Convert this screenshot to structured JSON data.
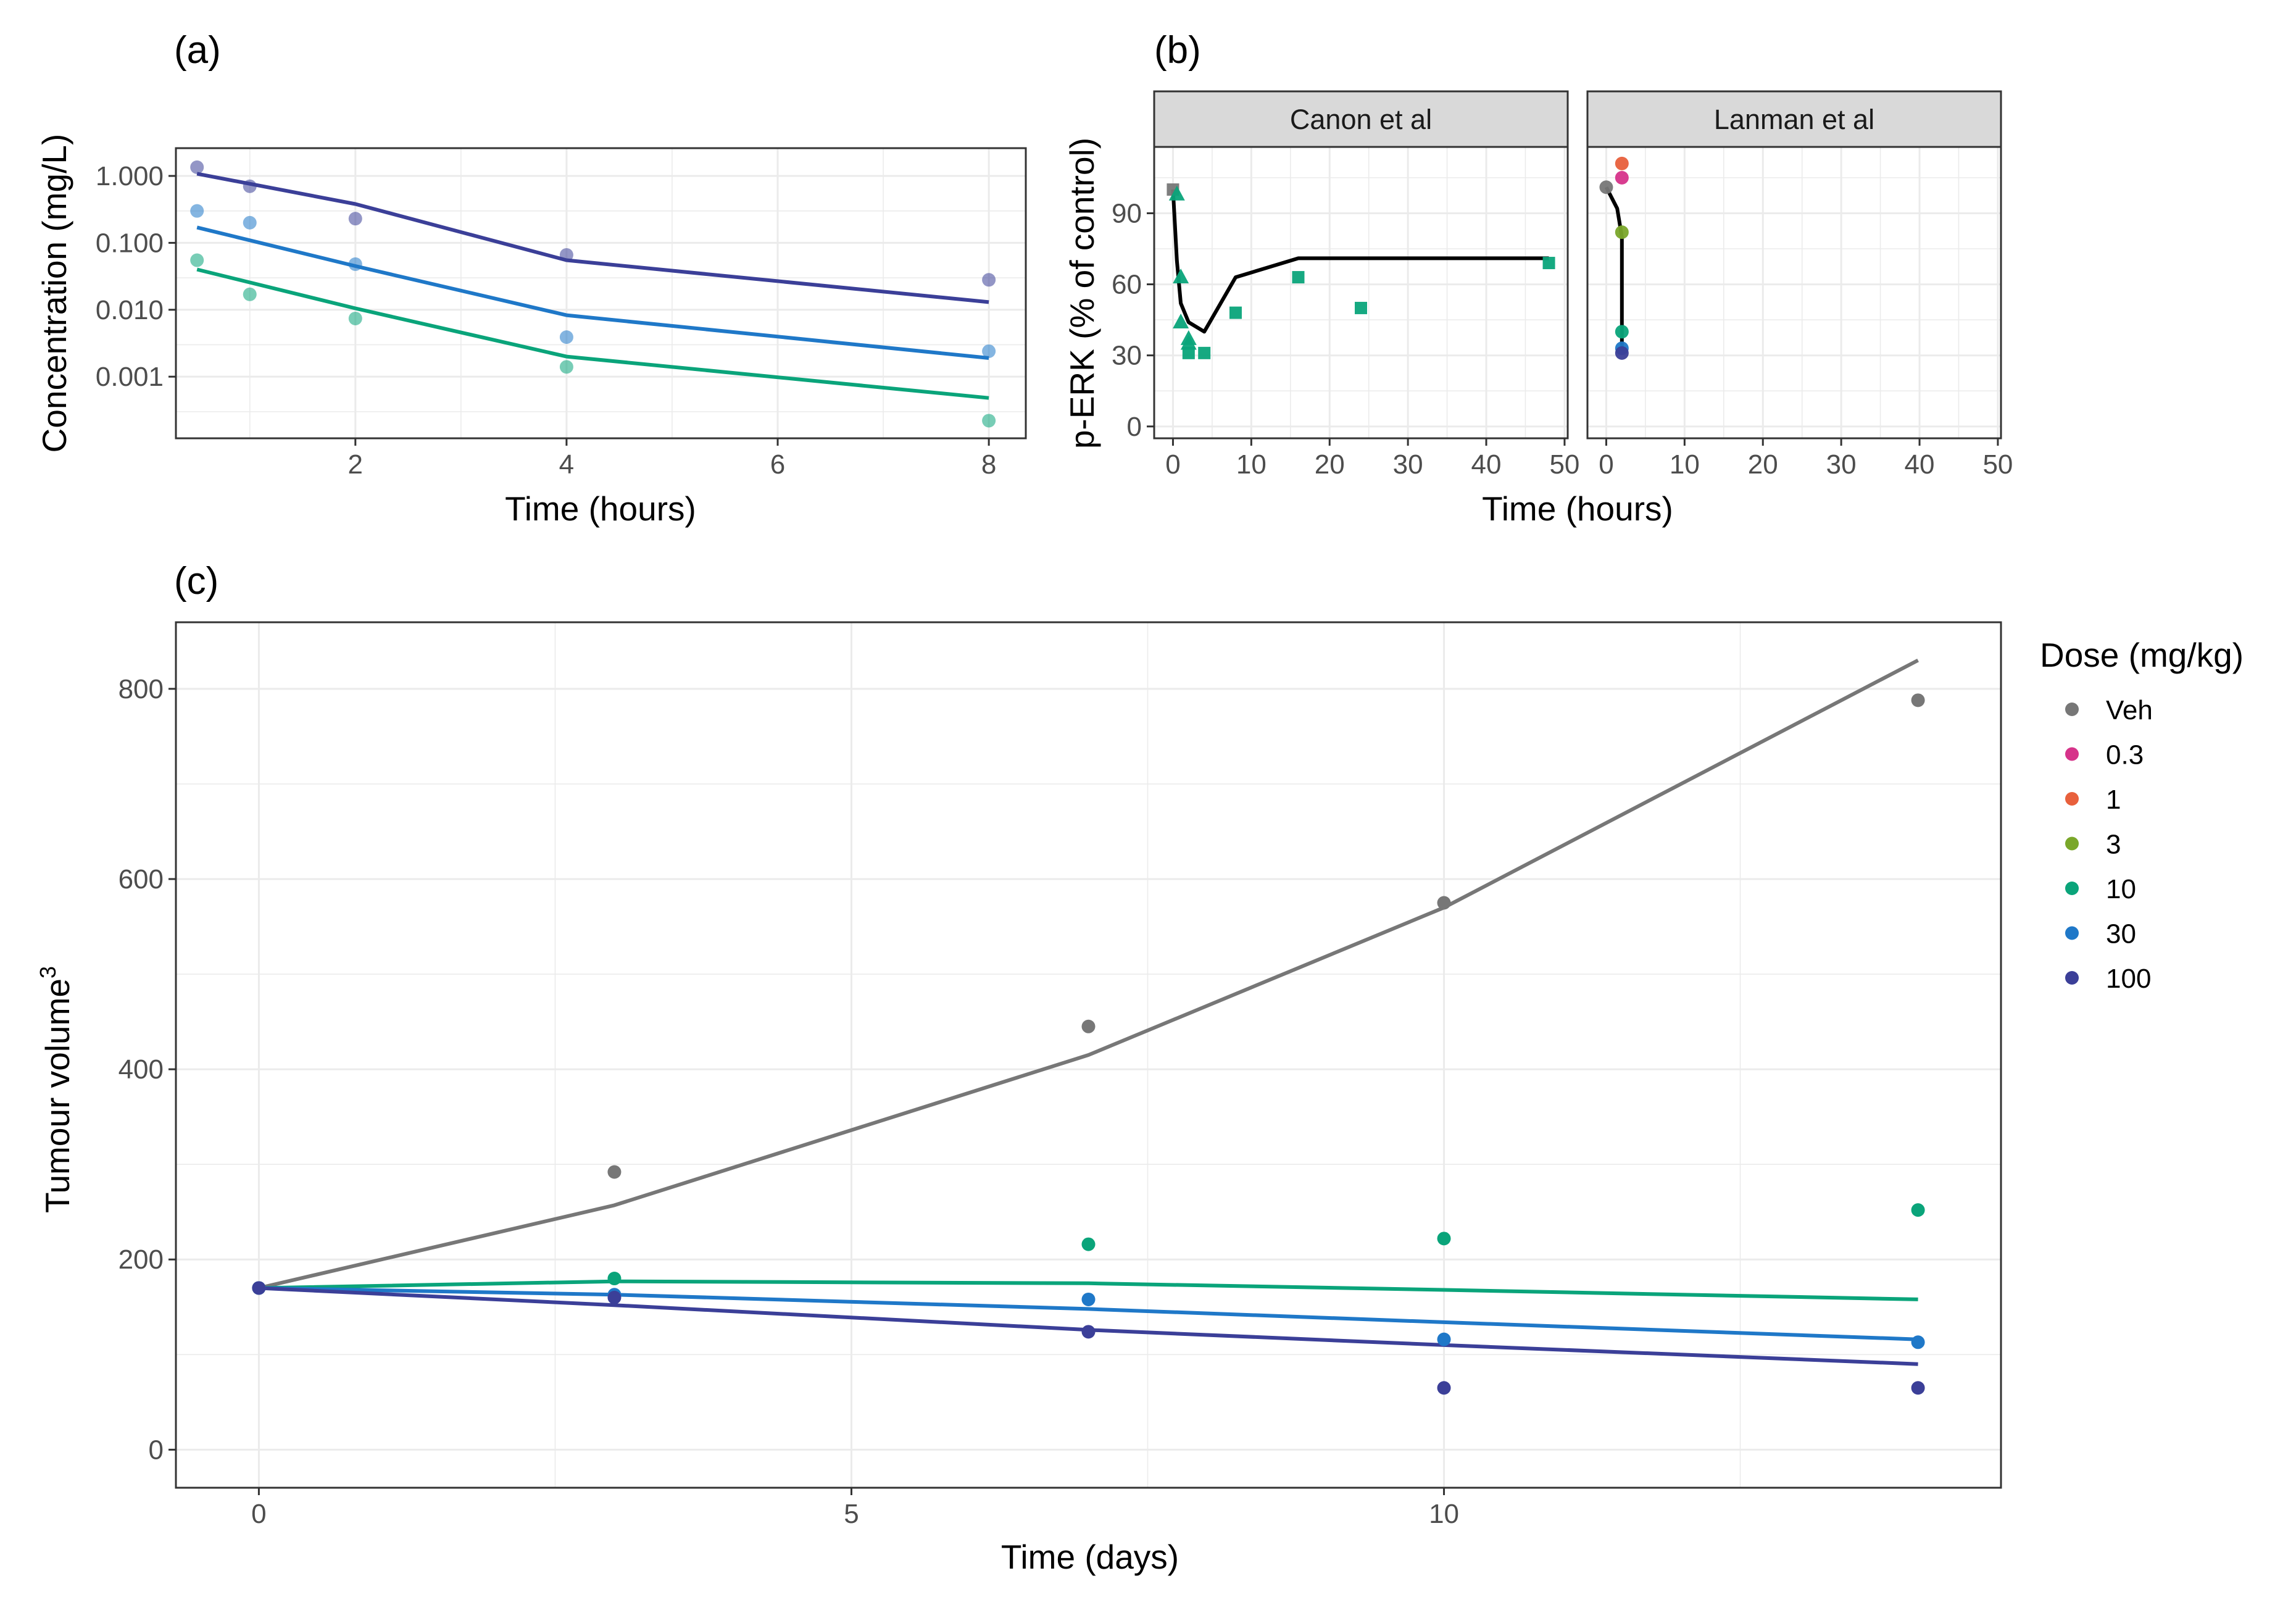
{
  "colors": {
    "Veh": "#777777",
    "0.3": "#d6338a",
    "1": "#e8603c",
    "3": "#7aa72a",
    "10": "#0aa47a",
    "30": "#1f78c8",
    "100": "#3b3f98",
    "model": "#000000"
  },
  "legend": {
    "title": "Dose (mg/kg)",
    "entries": [
      "Veh",
      "0.3",
      "1",
      "3",
      "10",
      "30",
      "100"
    ]
  },
  "chart_data": [
    {
      "panel": "(a)",
      "type": "scatter",
      "scale_y": "log10",
      "xlabel": "Time (hours)",
      "ylabel": "Concentration (mg/L)",
      "xlim": [
        0.3,
        8.35
      ],
      "ylim": [
        0.00012,
        2.6
      ],
      "x_ticks": [
        2,
        4,
        6,
        8
      ],
      "y_ticks": [
        0.001,
        0.01,
        0.1,
        1
      ],
      "y_tick_labels": [
        "0.001",
        "0.010",
        "0.100",
        "1.000"
      ],
      "grid": true,
      "series": [
        {
          "dose": "100",
          "points": [
            [
              0.5,
              1.35
            ],
            [
              1,
              0.7
            ],
            [
              2,
              0.23
            ],
            [
              4,
              0.066
            ],
            [
              8,
              0.028
            ]
          ],
          "fit": [
            [
              0.5,
              1.08
            ],
            [
              2,
              0.38
            ],
            [
              4,
              0.055
            ],
            [
              8,
              0.013
            ]
          ]
        },
        {
          "dose": "30",
          "points": [
            [
              0.5,
              0.3
            ],
            [
              1,
              0.2
            ],
            [
              2,
              0.048
            ],
            [
              4,
              0.0039
            ],
            [
              8,
              0.0024
            ]
          ],
          "fit": [
            [
              0.5,
              0.17
            ],
            [
              2,
              0.045
            ],
            [
              4,
              0.0083
            ],
            [
              8,
              0.0019
            ]
          ]
        },
        {
          "dose": "10",
          "points": [
            [
              0.5,
              0.055
            ],
            [
              1,
              0.017
            ],
            [
              2,
              0.0074
            ],
            [
              4,
              0.0014
            ],
            [
              8,
              0.00022
            ]
          ],
          "fit": [
            [
              0.5,
              0.04
            ],
            [
              2,
              0.0105
            ],
            [
              4,
              0.002
            ],
            [
              8,
              0.00048
            ]
          ]
        }
      ]
    },
    {
      "panel": "(b)",
      "type": "scatter",
      "xlabel": "Time (hours)",
      "ylabel": "p-ERK (% of control)",
      "xlim": [
        -2.4,
        50.4
      ],
      "ylim": [
        -5,
        118
      ],
      "x_ticks": [
        0,
        10,
        20,
        30,
        40,
        50
      ],
      "y_ticks": [
        0,
        30,
        60,
        90
      ],
      "grid": true,
      "facets": [
        {
          "strip": "Canon et al",
          "points": [
            {
              "x": 0,
              "y": 100,
              "dose": "Veh",
              "shape": "square"
            },
            {
              "x": 0.5,
              "y": 98,
              "dose": "10",
              "shape": "triangle"
            },
            {
              "x": 1,
              "y": 63,
              "dose": "10",
              "shape": "triangle"
            },
            {
              "x": 1,
              "y": 44,
              "dose": "10",
              "shape": "triangle"
            },
            {
              "x": 2,
              "y": 37,
              "dose": "10",
              "shape": "triangle"
            },
            {
              "x": 2,
              "y": 35,
              "dose": "10",
              "shape": "triangle"
            },
            {
              "x": 2,
              "y": 31,
              "dose": "10",
              "shape": "square"
            },
            {
              "x": 4,
              "y": 31,
              "dose": "10",
              "shape": "square"
            },
            {
              "x": 8,
              "y": 48,
              "dose": "10",
              "shape": "square"
            },
            {
              "x": 16,
              "y": 63,
              "dose": "10",
              "shape": "square"
            },
            {
              "x": 24,
              "y": 50,
              "dose": "10",
              "shape": "square"
            },
            {
              "x": 48,
              "y": 69,
              "dose": "10",
              "shape": "square"
            }
          ],
          "fit": [
            [
              0,
              100
            ],
            [
              0.5,
              70
            ],
            [
              1,
              52
            ],
            [
              2,
              44
            ],
            [
              4,
              40
            ],
            [
              8,
              63
            ],
            [
              16,
              71
            ],
            [
              48,
              71
            ]
          ]
        },
        {
          "strip": "Lanman et al",
          "points": [
            {
              "x": 0,
              "y": 101,
              "dose": "Veh",
              "shape": "circle"
            },
            {
              "x": 2,
              "y": 111,
              "dose": "1",
              "shape": "circle"
            },
            {
              "x": 2,
              "y": 105,
              "dose": "0.3",
              "shape": "circle"
            },
            {
              "x": 2,
              "y": 82,
              "dose": "3",
              "shape": "circle"
            },
            {
              "x": 2,
              "y": 40,
              "dose": "10",
              "shape": "circle"
            },
            {
              "x": 2,
              "y": 33,
              "dose": "30",
              "shape": "circle"
            },
            {
              "x": 2,
              "y": 31,
              "dose": "100",
              "shape": "circle"
            }
          ],
          "fit": [
            [
              0,
              101
            ],
            [
              1.4,
              92
            ],
            [
              2,
              80
            ],
            [
              2,
              32
            ]
          ]
        }
      ]
    },
    {
      "panel": "(c)",
      "type": "scatter",
      "xlabel": "Time (days)",
      "ylabel": "Tumour volume",
      "ylabel_superscript": "3",
      "xlim": [
        -0.7,
        14.7
      ],
      "ylim": [
        -40,
        870
      ],
      "x_ticks": [
        0,
        5,
        10
      ],
      "y_ticks": [
        0,
        200,
        400,
        600,
        800
      ],
      "grid": true,
      "series": [
        {
          "dose": "Veh",
          "x": [
            0,
            3,
            7,
            10,
            14
          ],
          "points": [
            170,
            292,
            445,
            575,
            788
          ],
          "fit": [
            170,
            257,
            415,
            570,
            830
          ]
        },
        {
          "dose": "10",
          "x": [
            0,
            3,
            7,
            10,
            14
          ],
          "points": [
            170,
            180,
            216,
            222,
            252
          ],
          "fit": [
            170,
            177,
            175,
            168,
            158
          ]
        },
        {
          "dose": "30",
          "x": [
            0,
            3,
            7,
            10,
            14
          ],
          "points": [
            170,
            163,
            158,
            116,
            113
          ],
          "fit": [
            170,
            163,
            148,
            134,
            116
          ]
        },
        {
          "dose": "100",
          "x": [
            0,
            3,
            7,
            10,
            14
          ],
          "points": [
            170,
            160,
            124,
            65,
            65
          ],
          "fit": [
            170,
            152,
            126,
            110,
            90
          ]
        }
      ]
    }
  ]
}
